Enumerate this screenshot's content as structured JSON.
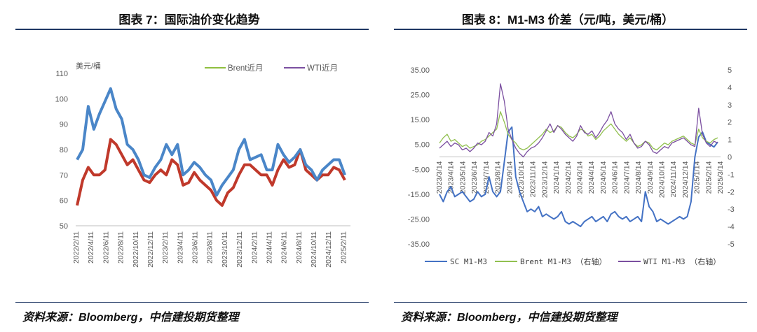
{
  "left": {
    "title": "图表 7：国际油价变化趋势",
    "source": "资料来源：Bloomberg，中信建投期货整理"
  },
  "right": {
    "title": "图表 8：M1-M3 价差（元/吨，美元/桶）",
    "source": "资料来源：Bloomberg，中信建投期货整理"
  },
  "colors": {
    "brent_left": "#8fbf3f",
    "wti_left": "#7b4fa0",
    "brent_line": "#4a86c8",
    "wti_line": "#c0392b",
    "sc": "#4472c4",
    "brent_spread": "#92c050",
    "wti_spread": "#7b4fa0",
    "rule": "#1f3864"
  },
  "chart_data": [
    {
      "type": "line",
      "unit_label": "美元/桶",
      "ylim": [
        50,
        110
      ],
      "yticks": [
        50,
        60,
        70,
        80,
        90,
        100,
        110
      ],
      "x_tick_labels": [
        "2022/2/11",
        "2022/4/11",
        "2022/6/11",
        "2022/8/11",
        "2022/10/11",
        "2022/12/11",
        "2023/2/11",
        "2023/4/11",
        "2023/6/11",
        "2023/8/11",
        "2023/10/11",
        "2023/12/11",
        "2024/2/11",
        "2024/4/11",
        "2024/6/11",
        "2024/8/11",
        "2024/10/11",
        "2024/12/11",
        "2025/2/11"
      ],
      "legend_position": "top-right",
      "series": [
        {
          "name": "Brent近月",
          "key": "brent",
          "values": [
            76,
            80,
            97,
            88,
            94,
            99,
            104,
            96,
            92,
            82,
            80,
            76,
            70,
            69,
            73,
            76,
            82,
            78,
            82,
            70,
            72,
            75,
            73,
            70,
            68,
            62,
            66,
            69,
            72,
            80,
            84,
            76,
            77,
            78,
            72,
            72,
            82,
            78,
            75,
            77,
            80,
            74,
            72,
            68,
            72,
            74,
            76,
            76,
            70
          ]
        },
        {
          "name": "WTI近月",
          "key": "wti",
          "values": [
            58,
            68,
            73,
            70,
            70,
            72,
            84,
            82,
            78,
            74,
            76,
            72,
            68,
            67,
            70,
            72,
            70,
            76,
            74,
            66,
            67,
            71,
            68,
            66,
            64,
            60,
            58,
            63,
            65,
            70,
            74,
            74,
            72,
            70,
            70,
            66,
            72,
            76,
            73,
            74,
            80,
            72,
            70,
            68,
            70,
            70,
            73,
            72,
            68
          ]
        }
      ]
    },
    {
      "type": "line",
      "ylim_left": [
        -35,
        35
      ],
      "yticks_left": [
        "35.00",
        "25.00",
        "15.00",
        "5.00",
        "-5.00",
        "-15.00",
        "-25.00",
        "-35.00"
      ],
      "ylim_right": [
        -5,
        5
      ],
      "yticks_right": [
        "5",
        "4",
        "3",
        "2",
        "1",
        "0",
        "-1",
        "-2",
        "-3",
        "-4",
        "-5"
      ],
      "x_tick_labels": [
        "2023/3/14",
        "2023/4/14",
        "2023/5/14",
        "2023/6/14",
        "2023/7/14",
        "2023/8/14",
        "2023/9/14",
        "2023/10/14",
        "2023/11/14",
        "2023/12/14",
        "2024/1/14",
        "2024/2/14",
        "2024/3/14",
        "2024/4/14",
        "2024/5/14",
        "2024/6/14",
        "2024/7/14",
        "2024/8/14",
        "2024/9/14",
        "2024/10/14",
        "2024/11/14",
        "2024/12/14",
        "2025/1/14",
        "2025/2/14",
        "2025/3/14"
      ],
      "legend_position": "bottom",
      "series": [
        {
          "name": "SC M1-M3",
          "key": "sc",
          "axis": "left",
          "values": [
            -15,
            -18,
            -14,
            -12,
            -16,
            -15,
            -14,
            -16,
            -18,
            -17,
            -14,
            -16,
            -15,
            -8,
            -14,
            -16,
            -14,
            -2,
            10,
            12,
            -8,
            -14,
            -18,
            -22,
            -21,
            -22,
            -20,
            -24,
            -23,
            -24,
            -25,
            -24,
            -22,
            -26,
            -27,
            -26,
            -27,
            -28,
            -26,
            -25,
            -24,
            -26,
            -25,
            -24,
            -26,
            -23,
            -22,
            -24,
            -25,
            -24,
            -26,
            -25,
            -24,
            -26,
            -14,
            -20,
            -22,
            -26,
            -25,
            -26,
            -27,
            -26,
            -25,
            -24,
            -25,
            -24,
            -18,
            0,
            8,
            10,
            6,
            5,
            4,
            6
          ]
        },
        {
          "name": "Brent M1-M3 （右轴）",
          "key": "brent",
          "axis": "right",
          "values": [
            0.8,
            1.1,
            1.3,
            0.9,
            1.0,
            0.8,
            0.6,
            0.7,
            0.5,
            0.6,
            0.7,
            0.9,
            1.0,
            1.2,
            1.4,
            1.6,
            2.6,
            2.0,
            1.3,
            1.0,
            0.8,
            0.5,
            0.4,
            0.5,
            0.7,
            0.9,
            1.1,
            1.3,
            1.6,
            1.4,
            1.5,
            1.8,
            1.7,
            1.4,
            1.2,
            1.1,
            1.3,
            1.6,
            1.5,
            1.2,
            1.3,
            1.0,
            1.2,
            1.5,
            1.7,
            1.9,
            1.6,
            1.3,
            1.1,
            0.9,
            1.1,
            0.8,
            0.6,
            0.7,
            0.9,
            0.8,
            0.5,
            0.4,
            0.6,
            0.8,
            0.7,
            0.9,
            1.0,
            1.1,
            1.2,
            1.0,
            0.8,
            0.7,
            1.6,
            1.1,
            0.9,
            0.8,
            1.0,
            1.1
          ]
        },
        {
          "name": "WTI M1-M3 （右轴）",
          "key": "wti",
          "axis": "right",
          "values": [
            0.5,
            0.7,
            0.9,
            0.6,
            0.8,
            0.7,
            0.4,
            0.5,
            0.3,
            0.5,
            0.8,
            0.7,
            0.9,
            1.4,
            1.2,
            1.9,
            4.2,
            3.2,
            1.6,
            1.0,
            0.5,
            0.2,
            0.0,
            0.3,
            0.5,
            0.6,
            0.8,
            1.1,
            1.5,
            1.9,
            1.4,
            1.8,
            1.6,
            1.3,
            1.1,
            0.9,
            1.2,
            1.8,
            1.4,
            1.3,
            1.5,
            1.1,
            1.4,
            1.8,
            2.1,
            2.6,
            1.9,
            1.6,
            1.4,
            1.0,
            1.3,
            0.8,
            0.5,
            0.6,
            0.9,
            0.7,
            0.3,
            0.2,
            0.4,
            0.6,
            0.5,
            0.8,
            0.9,
            1.0,
            1.1,
            0.9,
            0.7,
            0.6,
            2.8,
            1.3,
            0.8,
            0.6,
            0.9,
            0.8
          ]
        }
      ]
    }
  ]
}
